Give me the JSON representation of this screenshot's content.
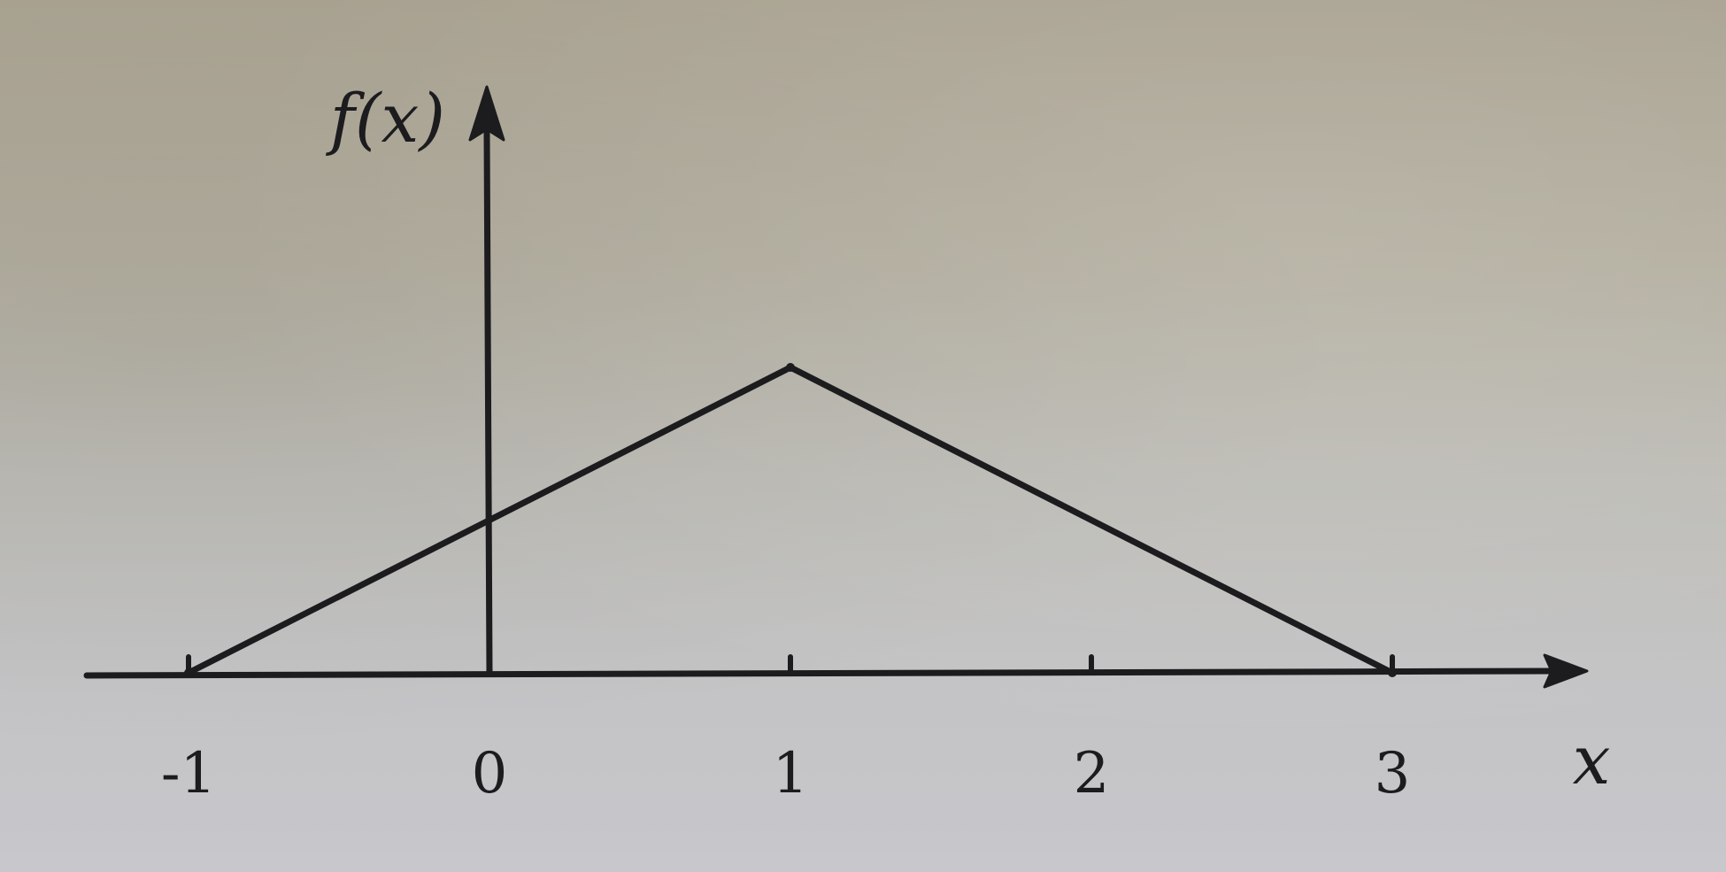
{
  "chart_data": {
    "type": "line",
    "x": [
      -1,
      1,
      3
    ],
    "y": [
      0,
      1,
      0
    ],
    "xticks": [
      -1,
      0,
      1,
      2,
      3
    ],
    "tick_labels": [
      "-1",
      "0",
      "1",
      "2",
      "3"
    ],
    "xlabel": "x",
    "ylabel": "f(x)",
    "xlim": [
      -1.25,
      3.5
    ],
    "grid": false,
    "colors": {
      "ink": "#1c1c1f"
    }
  }
}
